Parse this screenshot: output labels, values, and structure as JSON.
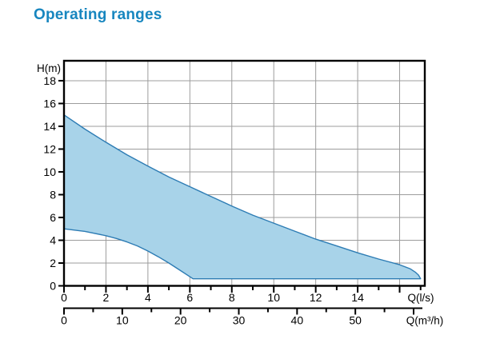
{
  "title": {
    "text": "Operating ranges",
    "color": "#1786bf"
  },
  "chart_data": {
    "type": "area",
    "title": "Operating ranges",
    "ylabel": "H(m)",
    "xlabel_primary": "Q(l/s)",
    "xlabel_secondary": "Q(m³/h)",
    "xlim": [
      0,
      17.2
    ],
    "ylim": [
      0,
      19.75
    ],
    "grid": true,
    "y_axis": {
      "label": "H(m)",
      "tick_values": [
        0,
        2,
        4,
        6,
        8,
        10,
        12,
        14,
        16,
        18
      ],
      "tick_labels": [
        "0",
        "2",
        "4",
        "6",
        "8",
        "10",
        "12",
        "14",
        "16",
        "18"
      ]
    },
    "x_axis_primary": {
      "label": "Q(l/s)",
      "unit": "l/s",
      "labeled_ticks": [
        0,
        2,
        4,
        6,
        8,
        10,
        12,
        14
      ],
      "major_ticks": [
        0,
        2,
        4,
        6,
        8,
        10,
        12,
        14,
        16
      ],
      "minor_ticks": [
        1,
        3,
        5,
        7,
        9,
        11,
        13,
        15,
        17
      ]
    },
    "x_axis_secondary": {
      "label": "Q(m³/h)",
      "unit": "m³/h",
      "units_per_primary": 3.6,
      "labeled_ticks": [
        0,
        10,
        20,
        30,
        40,
        50
      ],
      "major_ticks": [
        0,
        10,
        20,
        30,
        40,
        50,
        60
      ],
      "minor_ticks": [
        5,
        15,
        25,
        35,
        45,
        55
      ]
    },
    "gridlines": {
      "x_values": [
        2,
        4,
        6,
        8,
        10,
        12,
        14,
        16
      ],
      "y_values": [
        2,
        4,
        6,
        8,
        10,
        12,
        14,
        16,
        18
      ]
    },
    "series": [
      {
        "name": "operating-range",
        "fill": "#a8d3e9",
        "stroke": "#2d7cb4",
        "upper_boundary": [
          [
            0,
            15.0
          ],
          [
            1,
            13.75
          ],
          [
            2,
            12.6
          ],
          [
            3,
            11.5
          ],
          [
            4,
            10.5
          ],
          [
            5,
            9.55
          ],
          [
            6,
            8.7
          ],
          [
            7,
            7.85
          ],
          [
            8,
            7.0
          ],
          [
            9,
            6.2
          ],
          [
            10,
            5.5
          ],
          [
            11,
            4.8
          ],
          [
            12,
            4.1
          ],
          [
            13,
            3.5
          ],
          [
            14,
            2.9
          ],
          [
            15,
            2.35
          ],
          [
            16,
            1.85
          ],
          [
            16.5,
            1.5
          ],
          [
            16.75,
            1.2
          ],
          [
            16.9,
            0.95
          ],
          [
            17.0,
            0.62
          ]
        ],
        "lower_boundary": [
          [
            0,
            5.0
          ],
          [
            1,
            4.78
          ],
          [
            2,
            4.4
          ],
          [
            2.5,
            4.15
          ],
          [
            3,
            3.85
          ],
          [
            3.5,
            3.5
          ],
          [
            4,
            3.05
          ],
          [
            4.5,
            2.55
          ],
          [
            5,
            2.0
          ],
          [
            5.5,
            1.4
          ],
          [
            6,
            0.8
          ],
          [
            6.15,
            0.62
          ],
          [
            17.0,
            0.62
          ]
        ]
      }
    ],
    "colors": {
      "grid": "#9c9c9c",
      "axis": "#000000",
      "text": "#000000"
    }
  }
}
